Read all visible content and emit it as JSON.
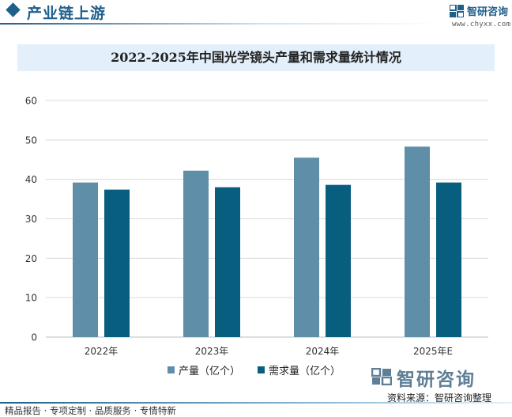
{
  "header": {
    "section_title": "产业链上游",
    "brand_name": "智研咨询",
    "brand_url": "www.chyxx.com",
    "colors": {
      "brand": "#1f5f8b"
    }
  },
  "chart_data": {
    "type": "bar",
    "title": "2022-2025年中国光学镜头产量和需求量统计情况",
    "xlabel": "",
    "ylabel": "",
    "categories": [
      "2022年",
      "2023年",
      "2024年",
      "2025年E"
    ],
    "series": [
      {
        "name": "产量（亿个）",
        "values": [
          39.2,
          42.2,
          45.5,
          48.3
        ],
        "color": "#5f8fa8"
      },
      {
        "name": "需求量（亿个）",
        "values": [
          37.4,
          38.0,
          38.6,
          39.2
        ],
        "color": "#075e7e"
      }
    ],
    "ylim": [
      0,
      60
    ],
    "yticks": [
      0,
      10,
      20,
      30,
      40,
      50,
      60
    ],
    "grid": true,
    "legend_position": "bottom"
  },
  "footer": {
    "logo_text": "智研咨询",
    "source": "资料来源：智研咨询整理",
    "tags": "精品报告 · 专项定制 · 品质服务 · 专情特新"
  }
}
